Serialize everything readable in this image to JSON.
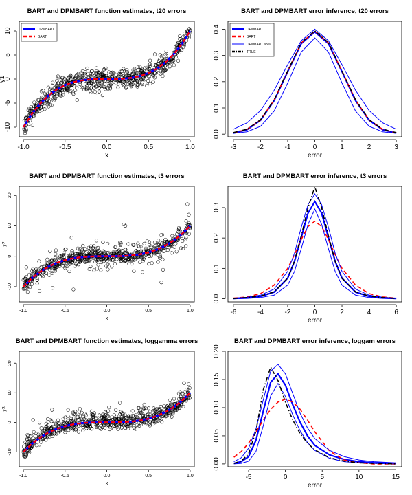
{
  "colors": {
    "dpmbart": "#0000ff",
    "bart": "#ff0000",
    "true": "#000000",
    "points": "#000000"
  },
  "chart_data": [
    {
      "type": "scatter",
      "title": "BART and DPMBART function estimates, t20 errors",
      "xlabel": "x",
      "ylabel": "y1",
      "xlim": [
        -1.05,
        1.05
      ],
      "ylim": [
        -12,
        12
      ],
      "xticks": [
        -1.0,
        -0.5,
        0.0,
        0.5,
        1.0
      ],
      "xtick_labels": [
        "-1.0",
        "-0.5",
        "0.0",
        "0.5",
        "1.0"
      ],
      "yticks": [
        -10,
        -5,
        0,
        5,
        10
      ],
      "ytick_labels": [
        "-10",
        "-5",
        "0",
        "5",
        "10"
      ],
      "legend_position": "top-left",
      "legend": [
        "DPMBART",
        "BART"
      ],
      "function": "10*x^3",
      "noise": "t20",
      "series": [
        {
          "name": "DPMBART",
          "x": [
            -1.0,
            -0.9,
            -0.8,
            -0.7,
            -0.6,
            -0.5,
            -0.4,
            -0.3,
            -0.2,
            -0.1,
            0.0,
            0.1,
            0.2,
            0.3,
            0.4,
            0.5,
            0.6,
            0.7,
            0.8,
            0.9,
            1.0
          ],
          "y": [
            -10.0,
            -7.29,
            -5.12,
            -3.43,
            -2.16,
            -1.25,
            -0.64,
            -0.27,
            -0.08,
            -0.01,
            0.0,
            0.01,
            0.08,
            0.27,
            0.64,
            1.25,
            2.16,
            3.43,
            5.12,
            7.29,
            10.0
          ]
        },
        {
          "name": "BART",
          "x": [
            -1.0,
            -0.9,
            -0.8,
            -0.7,
            -0.6,
            -0.5,
            -0.4,
            -0.3,
            -0.2,
            -0.1,
            0.0,
            0.1,
            0.2,
            0.3,
            0.4,
            0.5,
            0.6,
            0.7,
            0.8,
            0.9,
            1.0
          ],
          "y": [
            -10.0,
            -7.29,
            -5.12,
            -3.43,
            -2.16,
            -1.25,
            -0.64,
            -0.27,
            -0.08,
            -0.01,
            0.0,
            0.01,
            0.08,
            0.27,
            0.64,
            1.25,
            2.16,
            3.43,
            5.12,
            7.29,
            10.0
          ]
        }
      ]
    },
    {
      "type": "line",
      "title": "BART and DPMBART error inference, t20 errors",
      "xlabel": "error",
      "ylabel": "",
      "xlim": [
        -3.2,
        3.2
      ],
      "ylim": [
        -0.01,
        0.43
      ],
      "xticks": [
        -3,
        -2,
        -1,
        0,
        1,
        2,
        3
      ],
      "xtick_labels": [
        "-3",
        "-2",
        "-1",
        "0",
        "1",
        "2",
        "3"
      ],
      "yticks": [
        0.0,
        0.1,
        0.2,
        0.3,
        0.4
      ],
      "ytick_labels": [
        "0.0",
        "0.1",
        "0.2",
        "0.3",
        "0.4"
      ],
      "legend_position": "top-left",
      "legend": [
        "DPMBART",
        "BART",
        "DPMBART 95%",
        "TRUE"
      ],
      "series": [
        {
          "name": "DPMBART",
          "x": [
            -3.0,
            -2.5,
            -2.0,
            -1.5,
            -1.0,
            -0.5,
            0.0,
            0.5,
            1.0,
            1.5,
            2.0,
            2.5,
            3.0
          ],
          "y": [
            0.004,
            0.017,
            0.053,
            0.128,
            0.238,
            0.345,
            0.39,
            0.345,
            0.238,
            0.128,
            0.053,
            0.017,
            0.004
          ]
        },
        {
          "name": "BART",
          "x": [
            -3.0,
            -2.5,
            -2.0,
            -1.5,
            -1.0,
            -0.5,
            0.0,
            0.5,
            1.0,
            1.5,
            2.0,
            2.5,
            3.0
          ],
          "y": [
            0.005,
            0.018,
            0.054,
            0.13,
            0.24,
            0.348,
            0.393,
            0.348,
            0.24,
            0.13,
            0.054,
            0.018,
            0.005
          ]
        },
        {
          "name": "DPMBART 95% upper",
          "x": [
            -3.0,
            -2.5,
            -2.0,
            -1.5,
            -1.0,
            -0.5,
            0.0,
            0.5,
            1.0,
            1.5,
            2.0,
            2.5,
            3.0
          ],
          "y": [
            0.019,
            0.043,
            0.09,
            0.167,
            0.265,
            0.356,
            0.4,
            0.356,
            0.265,
            0.167,
            0.09,
            0.043,
            0.019
          ]
        },
        {
          "name": "DPMBART 95% lower",
          "x": [
            -3.0,
            -2.5,
            -2.0,
            -1.5,
            -1.0,
            -0.5,
            0.0,
            0.5,
            1.0,
            1.5,
            2.0,
            2.5,
            3.0
          ],
          "y": [
            0.003,
            0.009,
            0.03,
            0.088,
            0.195,
            0.313,
            0.367,
            0.313,
            0.195,
            0.088,
            0.03,
            0.009,
            0.003
          ]
        },
        {
          "name": "TRUE",
          "x": [
            -3.0,
            -2.5,
            -2.0,
            -1.5,
            -1.0,
            -0.5,
            0.0,
            0.5,
            1.0,
            1.5,
            2.0,
            2.5,
            3.0
          ],
          "y": [
            0.006,
            0.019,
            0.055,
            0.131,
            0.241,
            0.349,
            0.394,
            0.349,
            0.241,
            0.131,
            0.055,
            0.019,
            0.006
          ]
        }
      ]
    },
    {
      "type": "scatter",
      "title": "BART and DPMBART function estimates, t3 errors",
      "xlabel": "x",
      "ylabel": "y2",
      "xlim": [
        -1.05,
        1.05
      ],
      "ylim": [
        -15,
        23
      ],
      "xticks": [
        -1.0,
        -0.5,
        0.0,
        0.5,
        1.0
      ],
      "xtick_labels": [
        "-1.0",
        "-0.5",
        "0.0",
        "0.5",
        "1.0"
      ],
      "yticks": [
        -10,
        0,
        10,
        20
      ],
      "ytick_labels": [
        "-10",
        "0",
        "10",
        "20"
      ],
      "function": "10*x^3",
      "noise": "t3",
      "series": [
        {
          "name": "DPMBART",
          "x": [
            -1.0,
            -0.9,
            -0.8,
            -0.7,
            -0.6,
            -0.5,
            -0.4,
            -0.3,
            -0.2,
            -0.1,
            0.0,
            0.1,
            0.2,
            0.3,
            0.4,
            0.5,
            0.6,
            0.7,
            0.8,
            0.9,
            1.0
          ],
          "y": [
            -10.0,
            -7.29,
            -5.12,
            -3.43,
            -2.16,
            -1.25,
            -0.64,
            -0.27,
            -0.08,
            -0.01,
            0.0,
            0.01,
            0.08,
            0.27,
            0.64,
            1.25,
            2.16,
            3.43,
            5.12,
            7.29,
            10.0
          ]
        },
        {
          "name": "BART",
          "x": [
            -1.0,
            -0.9,
            -0.8,
            -0.7,
            -0.6,
            -0.5,
            -0.4,
            -0.3,
            -0.2,
            -0.1,
            0.0,
            0.1,
            0.2,
            0.3,
            0.4,
            0.5,
            0.6,
            0.7,
            0.8,
            0.9,
            1.0
          ],
          "y": [
            -10.0,
            -7.29,
            -5.12,
            -3.43,
            -2.16,
            -1.25,
            -0.64,
            -0.27,
            -0.08,
            -0.01,
            0.0,
            0.01,
            0.08,
            0.27,
            0.64,
            1.25,
            2.16,
            3.43,
            5.12,
            7.29,
            10.0
          ]
        }
      ]
    },
    {
      "type": "line",
      "title": "BART and DPMBART error inference, t3 errors",
      "xlabel": "error",
      "ylabel": "",
      "xlim": [
        -6.4,
        6.4
      ],
      "ylim": [
        -0.01,
        0.37
      ],
      "xticks": [
        -6,
        -4,
        -2,
        0,
        2,
        4,
        6
      ],
      "xtick_labels": [
        "-6",
        "-4",
        "-2",
        "0",
        "2",
        "4",
        "6"
      ],
      "yticks": [
        0.0,
        0.1,
        0.2,
        0.3
      ],
      "ytick_labels": [
        "0.0",
        "0.1",
        "0.2",
        "0.3"
      ],
      "series": [
        {
          "name": "DPMBART",
          "x": [
            -6,
            -5,
            -4,
            -3,
            -2,
            -1.5,
            -1,
            -0.5,
            0,
            0.5,
            1,
            1.5,
            2,
            3,
            4,
            5,
            6
          ],
          "y": [
            0.001,
            0.003,
            0.008,
            0.022,
            0.068,
            0.123,
            0.202,
            0.282,
            0.32,
            0.282,
            0.202,
            0.123,
            0.068,
            0.022,
            0.008,
            0.003,
            0.001
          ]
        },
        {
          "name": "BART",
          "x": [
            -6,
            -5,
            -4,
            -3,
            -2,
            -1.5,
            -1,
            -0.5,
            0,
            0.5,
            1,
            1.5,
            2,
            3,
            4,
            5,
            6
          ],
          "y": [
            0.002,
            0.006,
            0.017,
            0.045,
            0.1,
            0.145,
            0.195,
            0.238,
            0.255,
            0.238,
            0.195,
            0.145,
            0.1,
            0.045,
            0.017,
            0.006,
            0.002
          ]
        },
        {
          "name": "DPMBART 95% upper",
          "x": [
            -6,
            -5,
            -4,
            -3,
            -2,
            -1.5,
            -1,
            -0.5,
            0,
            0.5,
            1,
            1.5,
            2,
            3,
            4,
            5,
            6
          ],
          "y": [
            0.002,
            0.005,
            0.012,
            0.032,
            0.09,
            0.15,
            0.235,
            0.31,
            0.345,
            0.31,
            0.235,
            0.15,
            0.09,
            0.032,
            0.012,
            0.005,
            0.002
          ]
        },
        {
          "name": "DPMBART 95% lower",
          "x": [
            -6,
            -5,
            -4,
            -3,
            -2,
            -1.5,
            -1,
            -0.5,
            0,
            0.5,
            1,
            1.5,
            2,
            3,
            4,
            5,
            6
          ],
          "y": [
            0.0,
            0.001,
            0.004,
            0.012,
            0.045,
            0.09,
            0.165,
            0.245,
            0.295,
            0.245,
            0.165,
            0.09,
            0.045,
            0.012,
            0.004,
            0.001,
            0.0
          ]
        },
        {
          "name": "TRUE",
          "x": [
            -6,
            -5,
            -4,
            -3,
            -2,
            -1.5,
            -1,
            -0.5,
            0,
            0.5,
            1,
            1.5,
            2,
            3,
            4,
            5,
            6
          ],
          "y": [
            0.001,
            0.004,
            0.009,
            0.023,
            0.068,
            0.124,
            0.207,
            0.3,
            0.368,
            0.3,
            0.207,
            0.124,
            0.068,
            0.023,
            0.009,
            0.004,
            0.001
          ]
        }
      ]
    },
    {
      "type": "scatter",
      "title": "BART and DPMBART function estimates, loggamma errors",
      "xlabel": "x",
      "ylabel": "y3",
      "xlim": [
        -1.05,
        1.05
      ],
      "ylim": [
        -15,
        24
      ],
      "xticks": [
        -1.0,
        -0.5,
        0.0,
        0.5,
        1.0
      ],
      "xtick_labels": [
        "-1.0",
        "-0.5",
        "0.0",
        "0.5",
        "1.0"
      ],
      "yticks": [
        -10,
        0,
        10,
        20
      ],
      "ytick_labels": [
        "-10",
        "0",
        "10",
        "20"
      ],
      "function": "10*x^3",
      "noise": "loggamma",
      "series": [
        {
          "name": "DPMBART",
          "x": [
            -1.0,
            -0.9,
            -0.8,
            -0.7,
            -0.6,
            -0.5,
            -0.4,
            -0.3,
            -0.2,
            -0.1,
            0.0,
            0.1,
            0.2,
            0.3,
            0.4,
            0.5,
            0.6,
            0.7,
            0.8,
            0.9,
            1.0
          ],
          "y": [
            -10.0,
            -7.29,
            -5.12,
            -3.43,
            -2.16,
            -1.25,
            -0.64,
            -0.27,
            -0.08,
            -0.01,
            0.0,
            0.01,
            0.08,
            0.27,
            0.64,
            1.25,
            2.16,
            3.43,
            5.12,
            7.29,
            10.0
          ]
        },
        {
          "name": "BART",
          "x": [
            -1.0,
            -0.9,
            -0.8,
            -0.7,
            -0.6,
            -0.5,
            -0.4,
            -0.3,
            -0.2,
            -0.1,
            0.0,
            0.1,
            0.2,
            0.3,
            0.4,
            0.5,
            0.6,
            0.7,
            0.8,
            0.9,
            1.0
          ],
          "y": [
            -10.0,
            -7.29,
            -5.12,
            -3.43,
            -2.16,
            -1.25,
            -0.64,
            -0.27,
            -0.08,
            -0.01,
            0.0,
            0.01,
            0.08,
            0.27,
            0.64,
            1.25,
            2.16,
            3.43,
            5.12,
            7.29,
            10.0
          ]
        }
      ]
    },
    {
      "type": "line",
      "title": "BART and DPMBART error inference, loggam errors",
      "xlabel": "error",
      "ylabel": "",
      "xlim": [
        -7.8,
        15.8
      ],
      "ylim": [
        -0.005,
        0.2
      ],
      "xticks": [
        -5,
        0,
        5,
        10,
        15
      ],
      "xtick_labels": [
        "-5",
        "0",
        "5",
        "10",
        "15"
      ],
      "yticks": [
        0.0,
        0.05,
        0.1,
        0.15,
        0.2
      ],
      "ytick_labels": [
        "0.00",
        "0.05",
        "0.10",
        "0.15",
        "0.20"
      ],
      "series": [
        {
          "name": "DPMBART",
          "x": [
            -7,
            -6,
            -5,
            -4,
            -3,
            -2,
            -1,
            0,
            1,
            2,
            3,
            4,
            6,
            8,
            10,
            12,
            15
          ],
          "y": [
            0.001,
            0.004,
            0.013,
            0.042,
            0.094,
            0.145,
            0.16,
            0.14,
            0.105,
            0.074,
            0.05,
            0.033,
            0.016,
            0.008,
            0.004,
            0.002,
            0.001
          ]
        },
        {
          "name": "BART",
          "x": [
            -7,
            -6,
            -5,
            -4,
            -3,
            -2,
            -1,
            0,
            1,
            2,
            3,
            4,
            6,
            8,
            10,
            12,
            15
          ],
          "y": [
            0.012,
            0.022,
            0.037,
            0.057,
            0.078,
            0.097,
            0.11,
            0.115,
            0.11,
            0.097,
            0.078,
            0.057,
            0.023,
            0.007,
            0.002,
            0.0,
            0.0
          ]
        },
        {
          "name": "DPMBART 95% upper",
          "x": [
            -7,
            -6,
            -5,
            -4,
            -3,
            -2,
            -1,
            0,
            1,
            2,
            3,
            4,
            6,
            8,
            10,
            12,
            15
          ],
          "y": [
            0.004,
            0.011,
            0.028,
            0.062,
            0.114,
            0.165,
            0.177,
            0.16,
            0.125,
            0.09,
            0.064,
            0.045,
            0.024,
            0.013,
            0.007,
            0.004,
            0.002
          ]
        },
        {
          "name": "DPMBART 95% lower",
          "x": [
            -7,
            -6,
            -5,
            -4,
            -3,
            -2,
            -1,
            0,
            1,
            2,
            3,
            4,
            6,
            8,
            10,
            12,
            15
          ],
          "y": [
            0.0,
            0.001,
            0.005,
            0.022,
            0.068,
            0.121,
            0.143,
            0.12,
            0.087,
            0.059,
            0.038,
            0.024,
            0.01,
            0.004,
            0.002,
            0.001,
            0.0
          ]
        },
        {
          "name": "TRUE",
          "x": [
            -7,
            -6,
            -5,
            -4,
            -3,
            -2,
            -1,
            0,
            1,
            2,
            3,
            4,
            6,
            8,
            10,
            12,
            15
          ],
          "y": [
            0.001,
            0.005,
            0.018,
            0.058,
            0.132,
            0.172,
            0.148,
            0.11,
            0.078,
            0.054,
            0.037,
            0.025,
            0.011,
            0.005,
            0.002,
            0.001,
            0.0
          ]
        }
      ]
    }
  ]
}
